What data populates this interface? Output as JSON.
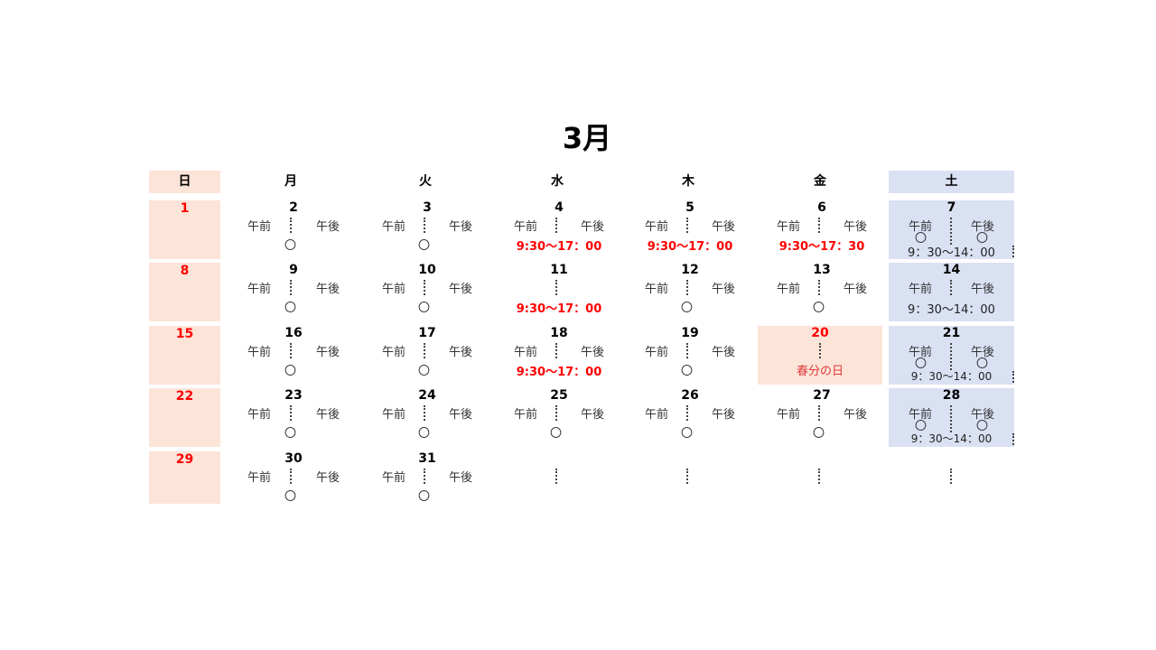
{
  "title": "3月",
  "weekdays": [
    "日",
    "月",
    "火",
    "水",
    "木",
    "金",
    "土"
  ],
  "am_label": "午前",
  "pm_label": "午後",
  "circle": "〇",
  "weekday_time": "9:30〜17：00",
  "friday_time": "9:30〜17：30",
  "saturday_time": "9：30〜14：00",
  "holiday": "春分の日",
  "sundays": [
    "1",
    "8",
    "15",
    "22",
    "29"
  ],
  "mon": [
    "2",
    "9",
    "16",
    "23",
    "30"
  ],
  "tue": [
    "3",
    "10",
    "17",
    "24",
    "31"
  ],
  "wed": [
    "4",
    "11",
    "18",
    "25"
  ],
  "thu": [
    "5",
    "12",
    "19",
    "26"
  ],
  "fri": [
    "6",
    "13",
    "20",
    "27"
  ],
  "sat": [
    "7",
    "14",
    "21",
    "28"
  ]
}
